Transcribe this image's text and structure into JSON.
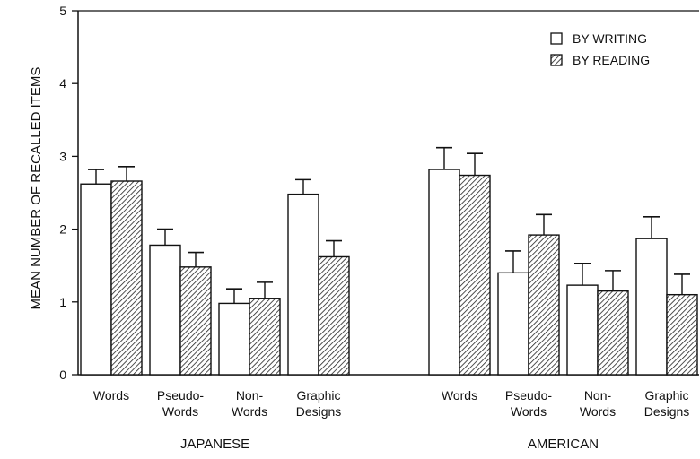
{
  "chart_data": {
    "type": "bar",
    "ylabel": "MEAN NUMBER OF RECALLED ITEMS",
    "ylim": [
      0,
      5
    ],
    "yticks": [
      "0",
      "1",
      "2",
      "3",
      "4",
      "5"
    ],
    "legend_position": "top-right",
    "series": [
      {
        "name": "BY WRITING",
        "fill": "#ffffff",
        "pattern": "none"
      },
      {
        "name": "BY READING",
        "fill": "hatched",
        "pattern": "diagonal-hatch"
      }
    ],
    "groups": [
      {
        "label": "JAPANESE",
        "categories": [
          {
            "label": [
              "Words"
            ],
            "writing": 2.62,
            "writing_err": 0.2,
            "reading": 2.66,
            "reading_err": 0.2
          },
          {
            "label": [
              "Pseudo-",
              "Words"
            ],
            "writing": 1.78,
            "writing_err": 0.22,
            "reading": 1.48,
            "reading_err": 0.2
          },
          {
            "label": [
              "Non-",
              "Words"
            ],
            "writing": 0.98,
            "writing_err": 0.2,
            "reading": 1.05,
            "reading_err": 0.22
          },
          {
            "label": [
              "Graphic",
              "Designs"
            ],
            "writing": 2.48,
            "writing_err": 0.2,
            "reading": 1.62,
            "reading_err": 0.22
          }
        ]
      },
      {
        "label": "AMERICAN",
        "categories": [
          {
            "label": [
              "Words"
            ],
            "writing": 2.82,
            "writing_err": 0.3,
            "reading": 2.74,
            "reading_err": 0.3
          },
          {
            "label": [
              "Pseudo-",
              "Words"
            ],
            "writing": 1.4,
            "writing_err": 0.3,
            "reading": 1.92,
            "reading_err": 0.28
          },
          {
            "label": [
              "Non-",
              "Words"
            ],
            "writing": 1.23,
            "writing_err": 0.3,
            "reading": 1.15,
            "reading_err": 0.28
          },
          {
            "label": [
              "Graphic",
              "Designs"
            ],
            "writing": 1.87,
            "writing_err": 0.3,
            "reading": 1.1,
            "reading_err": 0.28
          }
        ]
      }
    ]
  }
}
